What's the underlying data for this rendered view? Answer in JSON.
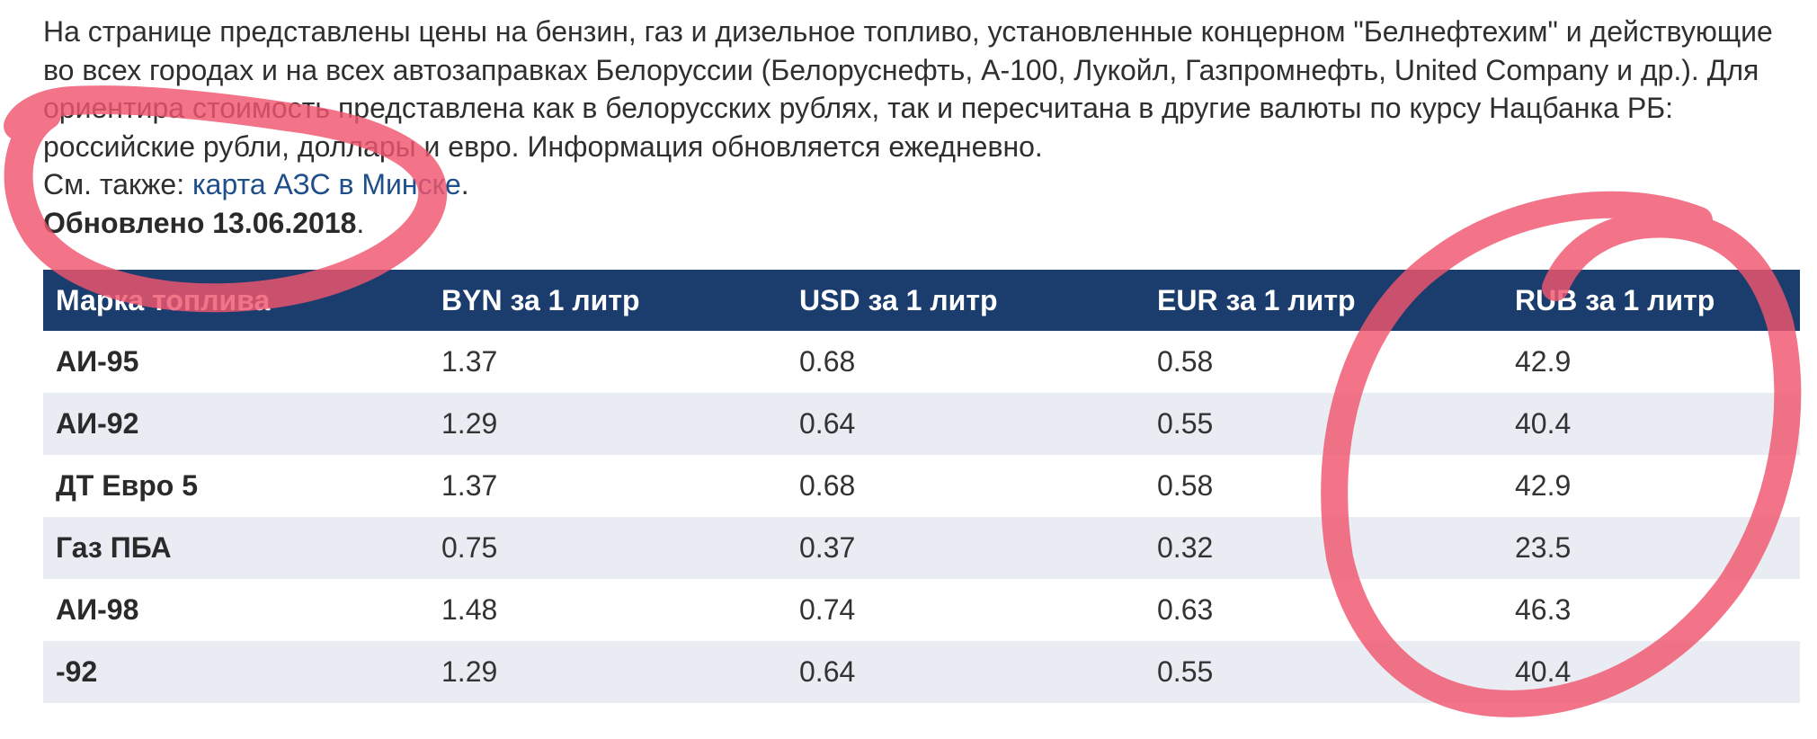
{
  "intro": {
    "paragraph": "На странице представлены цены на бензин, газ и дизельное топливо, установленные концерном \"Белнефтехим\" и действующие во всех городах и на всех автозаправках Белоруссии (Белоруснефть, А-100, Лукойл, Газпромнефть, United Company и др.). Для ориентира стоимость представлена как в белорусских рублях, так и пересчитана в другие валюты по курсу Нацбанка РБ: российские рубли, доллары и евро. Информация обновляется ежедневно.",
    "see_also_prefix": "См. также: ",
    "see_also_link": "карта АЗС в Минске",
    "see_also_suffix": ".",
    "updated": "Обновлено 13.06.2018",
    "updated_suffix": "."
  },
  "table": {
    "headers": [
      "Марка топлива",
      "BYN за 1 литр",
      "USD за 1 литр",
      "EUR за 1 литр",
      "RUB за 1 литр"
    ],
    "rows": [
      [
        "АИ-95",
        "1.37",
        "0.68",
        "0.58",
        "42.9"
      ],
      [
        "АИ-92",
        "1.29",
        "0.64",
        "0.55",
        "40.4"
      ],
      [
        "ДТ Евро 5",
        "1.37",
        "0.68",
        "0.58",
        "42.9"
      ],
      [
        "Газ ПБА",
        "0.75",
        "0.37",
        "0.32",
        "23.5"
      ],
      [
        "АИ-98",
        "1.48",
        "0.74",
        "0.63",
        "46.3"
      ],
      [
        "-92",
        "1.29",
        "0.64",
        "0.55",
        "40.4"
      ]
    ]
  },
  "annotations": {
    "marker_color": "#f0566e"
  }
}
